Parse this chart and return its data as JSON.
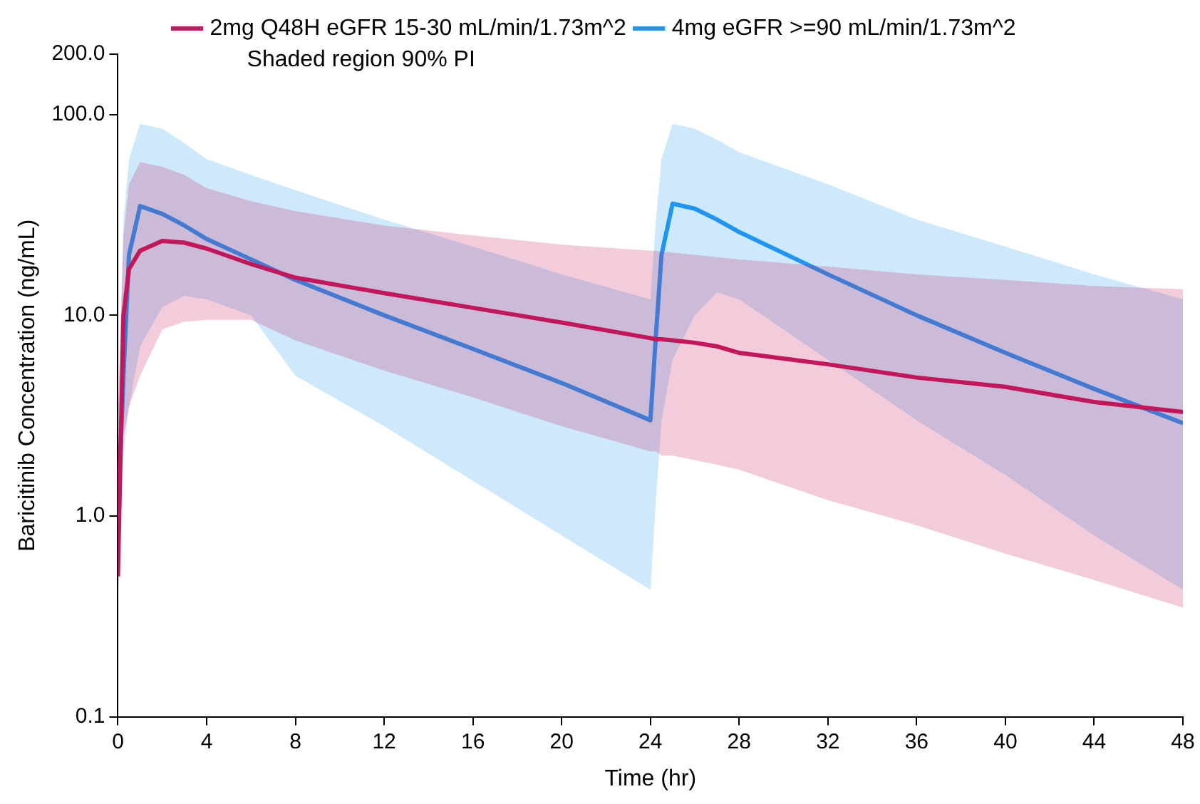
{
  "chart_data": {
    "type": "line",
    "xlabel": "Time (hr)",
    "ylabel": "Baricitinib Concentration (ng/mL)",
    "x": [
      0,
      0.25,
      0.5,
      1,
      2,
      3,
      4,
      6,
      8,
      12,
      16,
      20,
      24,
      24.25,
      24.5,
      25,
      26,
      27,
      28,
      32,
      36,
      40,
      44,
      48
    ],
    "series": [
      {
        "name": "2mg Q48H eGFR 15-30 mL/min/1.73m^2",
        "color": "#c2185b",
        "values": [
          0.5,
          10,
          17,
          21,
          23.5,
          23,
          21.5,
          18,
          15.4,
          12.9,
          10.9,
          9.2,
          7.7,
          7.6,
          7.6,
          7.5,
          7.3,
          7.0,
          6.5,
          5.7,
          4.9,
          4.4,
          3.7,
          3.3
        ],
        "lower": [
          0.35,
          2.5,
          3.5,
          5,
          8.5,
          9.3,
          9.5,
          9.5,
          7.5,
          5.3,
          3.9,
          2.8,
          2.1,
          2.1,
          2.0,
          2.0,
          1.9,
          1.8,
          1.7,
          1.2,
          0.9,
          0.65,
          0.48,
          0.35
        ],
        "upper": [
          3,
          25,
          45,
          58,
          55,
          50,
          43,
          37,
          33,
          28,
          25,
          22.5,
          21,
          21,
          20.8,
          20.5,
          20,
          19.5,
          19,
          17.5,
          16,
          15,
          14,
          13.5
        ]
      },
      {
        "name": "4mg eGFR >=90 mL/min/1.73m^2",
        "color": "#2196f3",
        "values": [
          1,
          5,
          20,
          35,
          32,
          28,
          24,
          19,
          15,
          10,
          6.8,
          4.6,
          3.0,
          8,
          20,
          36,
          34,
          30,
          26,
          16,
          10,
          6.5,
          4.3,
          2.9
        ],
        "lower": [
          0.9,
          2,
          3.5,
          7,
          11,
          12.5,
          12,
          10,
          5,
          2.8,
          1.5,
          0.8,
          0.43,
          1.2,
          3,
          6,
          10,
          13,
          12,
          6,
          3,
          1.6,
          0.8,
          0.43
        ],
        "upper": [
          3,
          30,
          60,
          90,
          85,
          72,
          60,
          50,
          42,
          30,
          22,
          16,
          12,
          30,
          60,
          90,
          85,
          75,
          65,
          45,
          30,
          22,
          16,
          12
        ]
      }
    ],
    "annotations": [
      "Shaded region 90% PI"
    ],
    "log": "y",
    "ylim": [
      0.1,
      200
    ],
    "yticks": [
      0.1,
      {
        "value": 1,
        "label": "1.0"
      },
      {
        "value": 10,
        "label": "10.0"
      },
      {
        "value": 100,
        "label": "100.0"
      },
      {
        "value": 200,
        "label": "200.0"
      }
    ],
    "xlim": [
      0,
      48
    ],
    "xticks": [
      0,
      4,
      8,
      12,
      16,
      20,
      24,
      28,
      32,
      36,
      40,
      44,
      48
    ],
    "grid": false,
    "legend": "top",
    "marker": "none",
    "line_style": "solid"
  }
}
